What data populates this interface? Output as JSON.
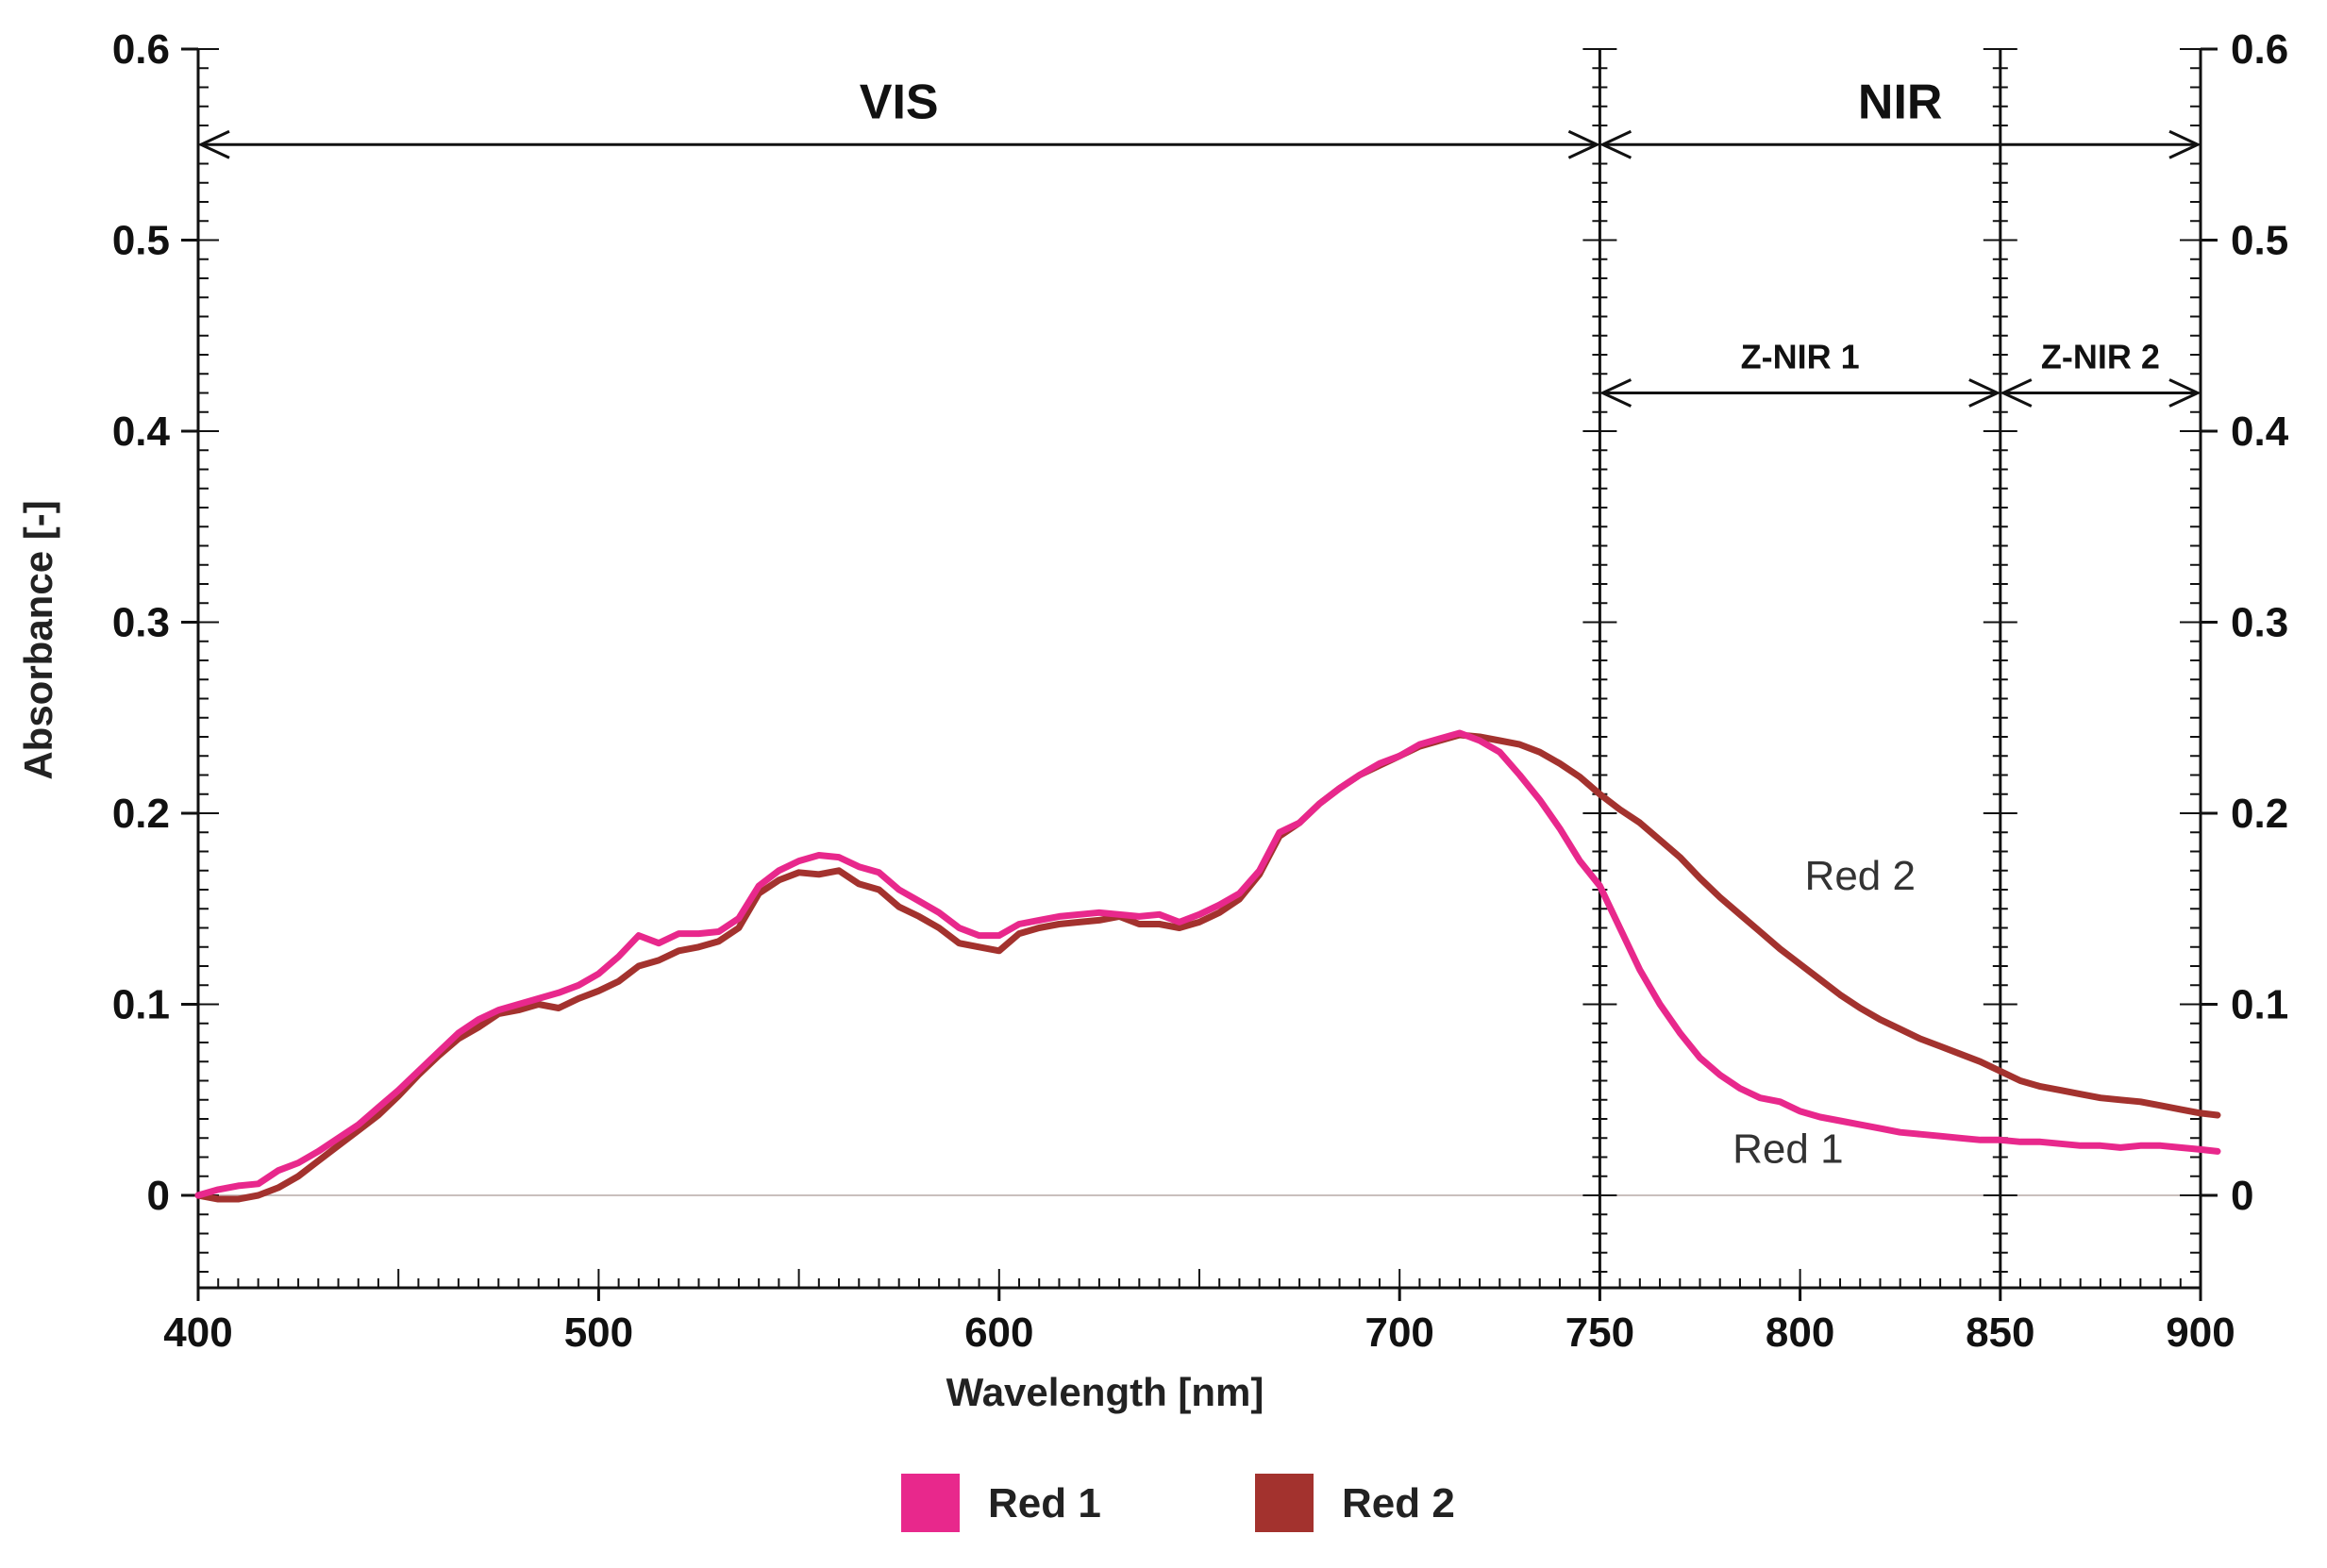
{
  "chart_data": {
    "type": "line",
    "title": "",
    "xlabel": "Wavelength [nm]",
    "ylabel": "Absorbance [-]",
    "xlim": [
      400,
      900
    ],
    "ylim": [
      -0.05,
      0.6
    ],
    "x_ticks": [
      400,
      500,
      600,
      700,
      750,
      800,
      850,
      900
    ],
    "x_tick_labels": [
      "400",
      "500",
      "600",
      "700",
      "750",
      "800",
      "850",
      "900"
    ],
    "y_ticks": [
      0,
      0.1,
      0.2,
      0.3,
      0.4,
      0.5,
      0.6
    ],
    "y_tick_labels": [
      "0",
      "0.1",
      "0.2",
      "0.3",
      "0.4",
      "0.5",
      "0.6"
    ],
    "y_ticks_right": true,
    "grid": false,
    "legend_position": "bottom-center",
    "vertical_lines": [
      750,
      850
    ],
    "regions": [
      {
        "label": "VIS",
        "from": 400,
        "to": 750,
        "y": 0.55
      },
      {
        "label": "NIR",
        "from": 750,
        "to": 900,
        "y": 0.55
      },
      {
        "label": "Z-NIR 1",
        "from": 750,
        "to": 850,
        "y": 0.42
      },
      {
        "label": "Z-NIR 2",
        "from": 850,
        "to": 900,
        "y": 0.42
      }
    ],
    "annotations": [
      {
        "text": "Red 2",
        "x": 815,
        "y": 0.16
      },
      {
        "text": "Red 1",
        "x": 797,
        "y": 0.017
      }
    ],
    "series": [
      {
        "name": "Red 1",
        "color": "#e8288c",
        "x": [
          400,
          405,
          410,
          415,
          420,
          425,
          430,
          435,
          440,
          445,
          450,
          455,
          460,
          465,
          470,
          475,
          480,
          485,
          490,
          495,
          500,
          505,
          510,
          515,
          520,
          525,
          530,
          535,
          540,
          545,
          550,
          555,
          560,
          565,
          570,
          575,
          580,
          585,
          590,
          595,
          600,
          605,
          610,
          615,
          620,
          625,
          630,
          635,
          640,
          645,
          650,
          655,
          660,
          665,
          670,
          675,
          680,
          685,
          690,
          695,
          700,
          705,
          710,
          715,
          720,
          725,
          730,
          735,
          740,
          745,
          750,
          755,
          760,
          765,
          770,
          775,
          780,
          785,
          790,
          795,
          800,
          805,
          810,
          815,
          820,
          825,
          830,
          835,
          840,
          845,
          850,
          855,
          860,
          865,
          870,
          875,
          880,
          885,
          890,
          895,
          900,
          905
        ],
        "y": [
          0.0,
          0.003,
          0.005,
          0.006,
          0.013,
          0.017,
          0.023,
          0.03,
          0.037,
          0.046,
          0.055,
          0.065,
          0.075,
          0.085,
          0.092,
          0.097,
          0.1,
          0.103,
          0.106,
          0.11,
          0.116,
          0.125,
          0.136,
          0.132,
          0.137,
          0.137,
          0.138,
          0.145,
          0.162,
          0.17,
          0.175,
          0.178,
          0.177,
          0.172,
          0.169,
          0.16,
          0.154,
          0.148,
          0.14,
          0.136,
          0.136,
          0.142,
          0.144,
          0.146,
          0.147,
          0.148,
          0.147,
          0.146,
          0.147,
          0.143,
          0.147,
          0.152,
          0.158,
          0.17,
          0.19,
          0.195,
          0.205,
          0.213,
          0.22,
          0.226,
          0.23,
          0.236,
          0.239,
          0.242,
          0.238,
          0.232,
          0.22,
          0.207,
          0.192,
          0.175,
          0.162,
          0.14,
          0.118,
          0.1,
          0.085,
          0.072,
          0.063,
          0.056,
          0.051,
          0.049,
          0.044,
          0.041,
          0.039,
          0.037,
          0.035,
          0.033,
          0.032,
          0.031,
          0.03,
          0.029,
          0.029,
          0.028,
          0.028,
          0.027,
          0.026,
          0.026,
          0.025,
          0.026,
          0.026,
          0.025,
          0.024,
          0.023
        ]
      },
      {
        "name": "Red 2",
        "color": "#a3322e",
        "x": [
          400,
          405,
          410,
          415,
          420,
          425,
          430,
          435,
          440,
          445,
          450,
          455,
          460,
          465,
          470,
          475,
          480,
          485,
          490,
          495,
          500,
          505,
          510,
          515,
          520,
          525,
          530,
          535,
          540,
          545,
          550,
          555,
          560,
          565,
          570,
          575,
          580,
          585,
          590,
          595,
          600,
          605,
          610,
          615,
          620,
          625,
          630,
          635,
          640,
          645,
          650,
          655,
          660,
          665,
          670,
          675,
          680,
          685,
          690,
          695,
          700,
          705,
          710,
          715,
          720,
          725,
          730,
          735,
          740,
          745,
          750,
          755,
          760,
          765,
          770,
          775,
          780,
          785,
          790,
          795,
          800,
          805,
          810,
          815,
          820,
          825,
          830,
          835,
          840,
          845,
          850,
          855,
          860,
          865,
          870,
          875,
          880,
          885,
          890,
          895,
          900,
          905
        ],
        "y": [
          0.0,
          -0.002,
          -0.002,
          0.0,
          0.004,
          0.01,
          0.018,
          0.026,
          0.034,
          0.042,
          0.052,
          0.063,
          0.073,
          0.082,
          0.088,
          0.095,
          0.097,
          0.1,
          0.098,
          0.103,
          0.107,
          0.112,
          0.12,
          0.123,
          0.128,
          0.13,
          0.133,
          0.14,
          0.158,
          0.165,
          0.169,
          0.168,
          0.17,
          0.163,
          0.16,
          0.151,
          0.146,
          0.14,
          0.132,
          0.13,
          0.128,
          0.137,
          0.14,
          0.142,
          0.143,
          0.144,
          0.146,
          0.142,
          0.142,
          0.14,
          0.143,
          0.148,
          0.155,
          0.168,
          0.188,
          0.195,
          0.205,
          0.213,
          0.22,
          0.225,
          0.23,
          0.235,
          0.238,
          0.241,
          0.24,
          0.238,
          0.236,
          0.232,
          0.226,
          0.219,
          0.21,
          0.202,
          0.195,
          0.186,
          0.177,
          0.166,
          0.156,
          0.147,
          0.138,
          0.129,
          0.121,
          0.113,
          0.105,
          0.098,
          0.092,
          0.087,
          0.082,
          0.078,
          0.074,
          0.07,
          0.065,
          0.06,
          0.057,
          0.055,
          0.053,
          0.051,
          0.05,
          0.049,
          0.047,
          0.045,
          0.043,
          0.042
        ]
      }
    ]
  }
}
